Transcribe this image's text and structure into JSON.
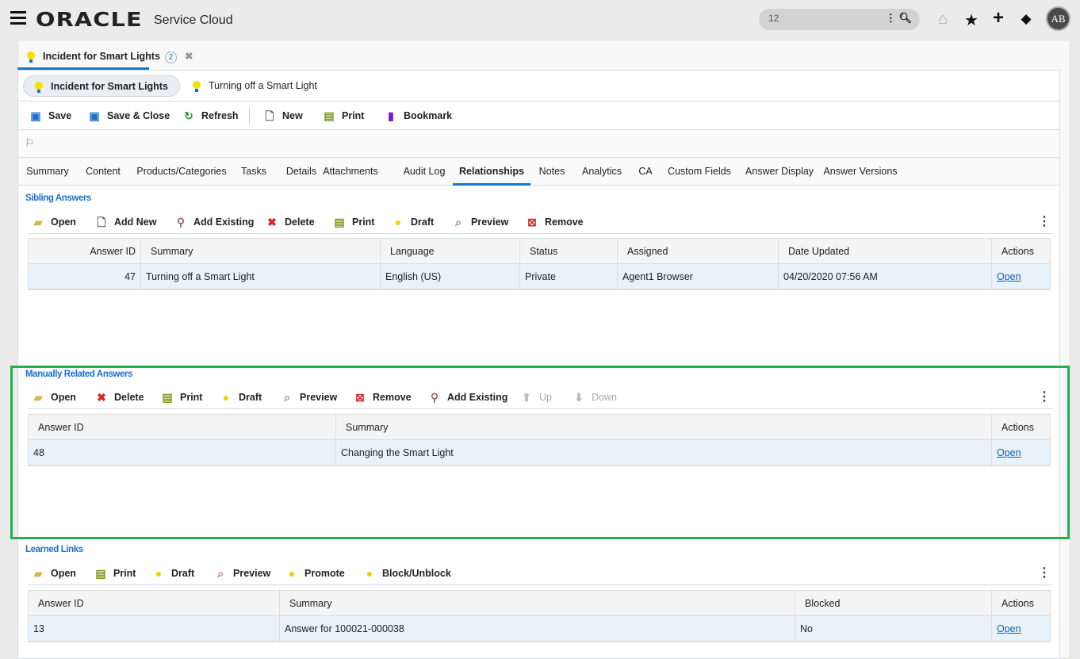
{
  "header": {
    "logo": "ORACLE",
    "product": "Service Cloud",
    "search_value": "12",
    "avatar_initials": "AB",
    "icons": [
      "menu-icon",
      "home-icon",
      "star-icon",
      "plus-icon",
      "notifications-icon"
    ]
  },
  "workspace_tab": {
    "label": "Incident for Smart Lights",
    "count": "2"
  },
  "subtabs": [
    {
      "label": "Incident for Smart Lights",
      "active": true
    },
    {
      "label": "Turning off a Smart Light",
      "active": false
    }
  ],
  "main_toolbar": [
    {
      "label": "Save",
      "icon": "save-icon"
    },
    {
      "label": "Save & Close",
      "icon": "save-close-icon"
    },
    {
      "label": "Refresh",
      "icon": "refresh-icon"
    },
    {
      "label": "New",
      "icon": "new-icon"
    },
    {
      "label": "Print",
      "icon": "print-icon"
    },
    {
      "label": "Bookmark",
      "icon": "bookmark-icon"
    }
  ],
  "tabs": [
    {
      "label": "Summary"
    },
    {
      "label": "Content"
    },
    {
      "label": "Products/Categories"
    },
    {
      "label": "Tasks"
    },
    {
      "label": "Details"
    },
    {
      "label": "Attachments"
    },
    {
      "label": "Audit Log"
    },
    {
      "label": "Relationships",
      "active": true
    },
    {
      "label": "Notes"
    },
    {
      "label": "Analytics"
    },
    {
      "label": "CA"
    },
    {
      "label": "Custom Fields"
    },
    {
      "label": "Answer Display"
    },
    {
      "label": "Answer Versions"
    }
  ],
  "sibling": {
    "title": "Sibling Answers",
    "toolbar": [
      {
        "label": "Open",
        "icon": "open-folder-icon"
      },
      {
        "label": "Add New",
        "icon": "new-icon"
      },
      {
        "label": "Add Existing",
        "icon": "search-icon"
      },
      {
        "label": "Delete",
        "icon": "delete-icon"
      },
      {
        "label": "Print",
        "icon": "print-icon"
      },
      {
        "label": "Draft",
        "icon": "draft-icon"
      },
      {
        "label": "Preview",
        "icon": "preview-icon"
      },
      {
        "label": "Remove",
        "icon": "remove-icon"
      }
    ],
    "columns": [
      "Answer ID",
      "Summary",
      "Language",
      "Status",
      "Assigned",
      "Date Updated",
      "Actions"
    ],
    "rows": [
      [
        "47",
        "Turning off a Smart Light",
        "English (US)",
        "Private",
        "Agent1 Browser",
        "04/20/2020 07:56 AM",
        "Open"
      ]
    ]
  },
  "manual": {
    "title": "Manually Related Answers",
    "toolbar": [
      {
        "label": "Open",
        "icon": "open-folder-icon"
      },
      {
        "label": "Delete",
        "icon": "delete-icon"
      },
      {
        "label": "Print",
        "icon": "print-icon"
      },
      {
        "label": "Draft",
        "icon": "draft-icon"
      },
      {
        "label": "Preview",
        "icon": "preview-icon"
      },
      {
        "label": "Remove",
        "icon": "remove-icon"
      },
      {
        "label": "Add Existing",
        "icon": "search-icon"
      },
      {
        "label": "Up",
        "icon": "arrow-up-icon",
        "disabled": true
      },
      {
        "label": "Down",
        "icon": "arrow-down-icon",
        "disabled": true
      }
    ],
    "columns": [
      "Answer ID",
      "Summary",
      "Actions"
    ],
    "rows": [
      [
        "48",
        "Changing the Smart Light",
        "Open"
      ]
    ]
  },
  "learned": {
    "title": "Learned Links",
    "toolbar": [
      {
        "label": "Open",
        "icon": "open-folder-icon"
      },
      {
        "label": "Print",
        "icon": "print-icon"
      },
      {
        "label": "Draft",
        "icon": "draft-icon"
      },
      {
        "label": "Preview",
        "icon": "preview-icon"
      },
      {
        "label": "Promote",
        "icon": "promote-icon"
      },
      {
        "label": "Block/Unblock",
        "icon": "block-icon"
      }
    ],
    "columns": [
      "Answer ID",
      "Summary",
      "Blocked",
      "Actions"
    ],
    "rows": [
      [
        "13",
        "Answer for 100021-000038",
        "No",
        "Open"
      ]
    ]
  },
  "colors": {
    "accent": "#1a73c8",
    "highlight": "#22b04a",
    "row": "#e8f2fa"
  }
}
